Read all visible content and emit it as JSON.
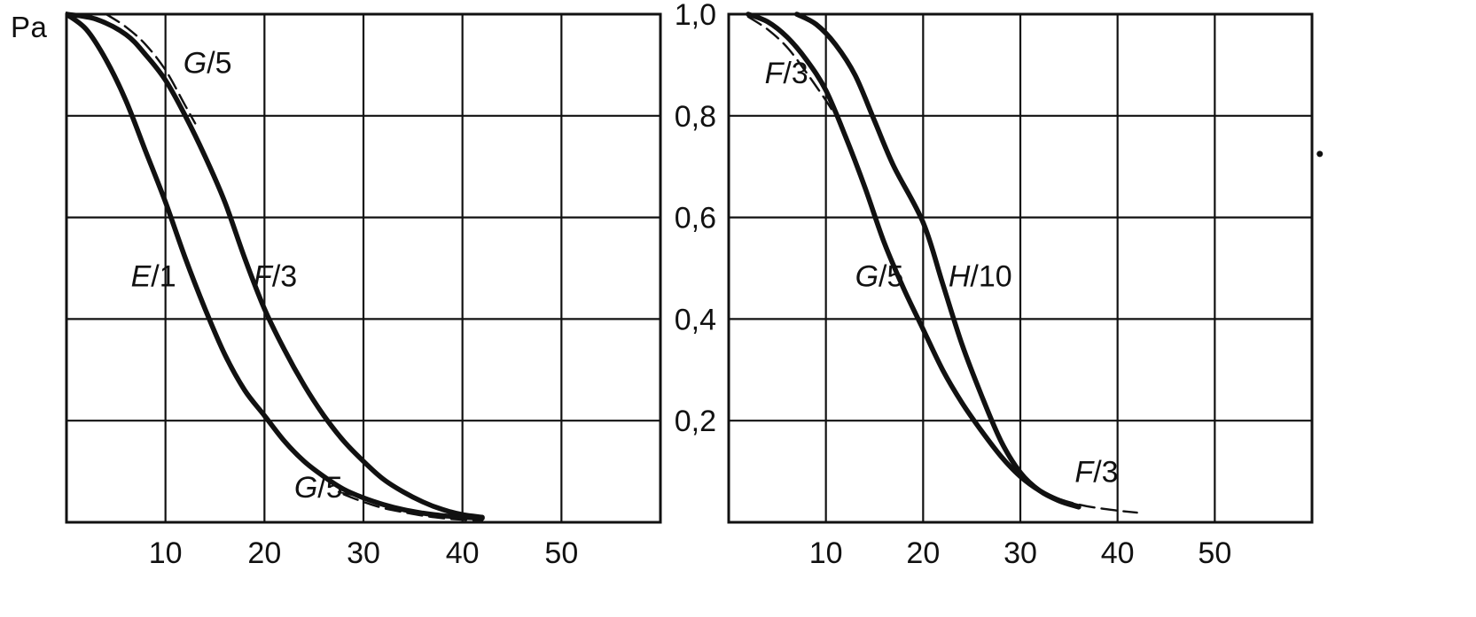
{
  "figure": {
    "background": "#ffffff",
    "ink": "#111111",
    "description_title": ""
  },
  "chart_data": [
    {
      "type": "line",
      "title": "",
      "xlabel": "",
      "ylabel": "Pa",
      "xlim": [
        0,
        60
      ],
      "ylim": [
        0,
        1
      ],
      "x_grid_step": 10,
      "y_grid_step": 0.2,
      "grid": true,
      "x_tick_values": [
        10,
        20,
        30,
        40,
        50
      ],
      "x_tick_labels": [
        "10",
        "20",
        "30",
        "40",
        "50"
      ],
      "y_tick_values": [],
      "y_tick_labels": [],
      "series": [
        {
          "name": "E/1",
          "line": "solid",
          "points": [
            [
              0,
              1.0
            ],
            [
              2,
              0.97
            ],
            [
              4,
              0.91
            ],
            [
              6,
              0.83
            ],
            [
              8,
              0.73
            ],
            [
              10,
              0.63
            ],
            [
              12,
              0.52
            ],
            [
              14,
              0.42
            ],
            [
              16,
              0.33
            ],
            [
              18,
              0.26
            ],
            [
              20,
              0.21
            ],
            [
              22,
              0.16
            ],
            [
              24,
              0.12
            ],
            [
              26,
              0.09
            ],
            [
              28,
              0.065
            ],
            [
              30,
              0.048
            ],
            [
              32,
              0.035
            ],
            [
              34,
              0.025
            ],
            [
              36,
              0.018
            ],
            [
              38,
              0.013
            ],
            [
              40,
              0.01
            ],
            [
              42,
              0.008
            ]
          ]
        },
        {
          "name": "F/3",
          "line": "solid",
          "points": [
            [
              0,
              1.0
            ],
            [
              3,
              0.99
            ],
            [
              6,
              0.96
            ],
            [
              8,
              0.92
            ],
            [
              10,
              0.87
            ],
            [
              12,
              0.8
            ],
            [
              14,
              0.72
            ],
            [
              16,
              0.63
            ],
            [
              18,
              0.52
            ],
            [
              20,
              0.42
            ],
            [
              22,
              0.34
            ],
            [
              24,
              0.27
            ],
            [
              26,
              0.21
            ],
            [
              28,
              0.16
            ],
            [
              30,
              0.12
            ],
            [
              32,
              0.085
            ],
            [
              34,
              0.06
            ],
            [
              36,
              0.04
            ],
            [
              38,
              0.025
            ],
            [
              40,
              0.015
            ],
            [
              42,
              0.01
            ]
          ]
        },
        {
          "name": "G/5 upper fragment",
          "line": "dashed",
          "points": [
            [
              4,
              1.0
            ],
            [
              6,
              0.975
            ],
            [
              8,
              0.94
            ],
            [
              10,
              0.89
            ],
            [
              12,
              0.82
            ],
            [
              13,
              0.785
            ]
          ]
        },
        {
          "name": "G/5 lower fragment",
          "line": "dashed",
          "points": [
            [
              28,
              0.055
            ],
            [
              30,
              0.04
            ],
            [
              32,
              0.028
            ],
            [
              34,
              0.02
            ],
            [
              36,
              0.013
            ],
            [
              38,
              0.008
            ],
            [
              40,
              0.005
            ],
            [
              42,
              0.004
            ]
          ]
        }
      ],
      "curve_labels": [
        {
          "text": "G/5",
          "x": 11.8,
          "y": 0.905
        },
        {
          "text": "E/1",
          "x": 6.5,
          "y": 0.485
        },
        {
          "text": "F/3",
          "x": 18.9,
          "y": 0.485
        },
        {
          "text": "G/5",
          "x": 23.0,
          "y": 0.07,
          "leader": {
            "x1": 27.4,
            "y1": 0.06,
            "x2": 29.6,
            "y2": 0.05
          }
        }
      ],
      "annotations": []
    },
    {
      "type": "line",
      "title": "",
      "xlabel": "",
      "ylabel": "",
      "xlim": [
        0,
        60
      ],
      "ylim": [
        0,
        1
      ],
      "x_grid_step": 10,
      "y_grid_step": 0.2,
      "grid": true,
      "x_tick_values": [
        10,
        20,
        30,
        40,
        50
      ],
      "x_tick_labels": [
        "10",
        "20",
        "30",
        "40",
        "50"
      ],
      "y_tick_values": [
        1.0,
        0.8,
        0.6,
        0.4,
        0.2
      ],
      "y_tick_labels": [
        "1,0",
        "0,8",
        "0,6",
        "0,4",
        "0,2"
      ],
      "series": [
        {
          "name": "G/5",
          "line": "solid",
          "points": [
            [
              2,
              1.0
            ],
            [
              4,
              0.985
            ],
            [
              6,
              0.955
            ],
            [
              8,
              0.91
            ],
            [
              10,
              0.85
            ],
            [
              12,
              0.76
            ],
            [
              14,
              0.66
            ],
            [
              16,
              0.55
            ],
            [
              18,
              0.46
            ],
            [
              20,
              0.38
            ],
            [
              22,
              0.3
            ],
            [
              24,
              0.235
            ],
            [
              26,
              0.18
            ],
            [
              28,
              0.13
            ],
            [
              30,
              0.09
            ],
            [
              32,
              0.062
            ],
            [
              34,
              0.043
            ],
            [
              36,
              0.031
            ]
          ]
        },
        {
          "name": "H/10",
          "line": "solid",
          "points": [
            [
              7,
              1.0
            ],
            [
              9,
              0.98
            ],
            [
              11,
              0.94
            ],
            [
              13,
              0.88
            ],
            [
              15,
              0.79
            ],
            [
              17,
              0.7
            ],
            [
              20,
              0.59
            ],
            [
              22,
              0.47
            ],
            [
              24,
              0.35
            ],
            [
              26,
              0.25
            ],
            [
              28,
              0.16
            ],
            [
              30,
              0.098
            ],
            [
              32,
              0.062
            ],
            [
              34,
              0.042
            ],
            [
              36,
              0.03
            ]
          ]
        },
        {
          "name": "F/3 upper fragment",
          "line": "dashed",
          "points": [
            [
              2,
              0.995
            ],
            [
              4,
              0.97
            ],
            [
              6,
              0.935
            ],
            [
              8,
              0.885
            ],
            [
              10,
              0.83
            ],
            [
              11,
              0.8
            ]
          ]
        },
        {
          "name": "F/3 lower fragment",
          "line": "dashed",
          "points": [
            [
              30,
              0.09
            ],
            [
              32,
              0.062
            ],
            [
              34,
              0.046
            ],
            [
              36,
              0.035
            ],
            [
              38,
              0.028
            ],
            [
              40,
              0.023
            ],
            [
              42,
              0.019
            ]
          ]
        }
      ],
      "curve_labels": [
        {
          "text": "F/3",
          "x": 3.7,
          "y": 0.885
        },
        {
          "text": "G/5",
          "x": 13.0,
          "y": 0.485
        },
        {
          "text": "H/10",
          "x": 22.6,
          "y": 0.485
        },
        {
          "text": "F/3",
          "x": 35.6,
          "y": 0.1
        }
      ],
      "annotations": [
        {
          "type": "dot",
          "x": 60.8,
          "y": 0.725
        }
      ]
    }
  ]
}
